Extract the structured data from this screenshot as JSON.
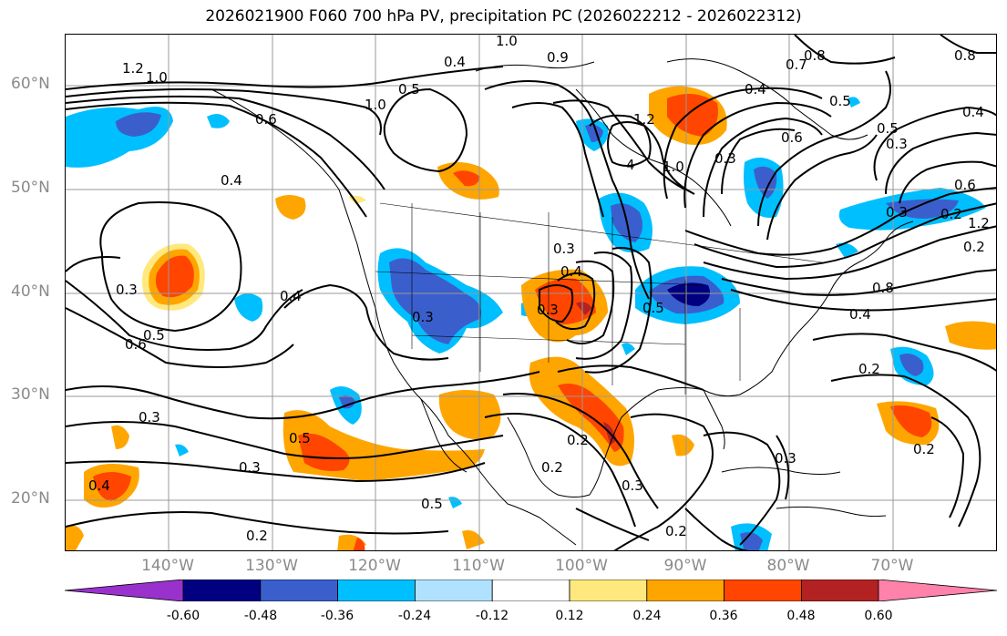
{
  "title": "2026021900 F060 700 hPa PV, precipitation PC (2026022212 - 2026022312)",
  "lat_labels": [
    "60°N",
    "50°N",
    "40°N",
    "30°N",
    "20°N"
  ],
  "lon_labels": [
    "140°W",
    "130°W",
    "120°W",
    "110°W",
    "100°W",
    "90°W",
    "80°W",
    "70°W"
  ],
  "colorbar": {
    "ticks": [
      "-0.60",
      "-0.48",
      "-0.36",
      "-0.24",
      "-0.12",
      "0.12",
      "0.24",
      "0.36",
      "0.48",
      "0.60"
    ],
    "colors": [
      "#9932cc",
      "#000080",
      "#3a5fcd",
      "#00bfff",
      "#b0e2ff",
      "#ffffff",
      "#ffe97f",
      "#ffa500",
      "#ff4500",
      "#b22222",
      "#ff82ab"
    ]
  },
  "contour_labels": [
    "1.0",
    "1.2",
    "1.0",
    "0.9",
    "0.8",
    "0.7",
    "0.8",
    "0.6",
    "0.5",
    "0.4",
    "0.4",
    "0.3",
    "0.5",
    "0.6",
    "1.0",
    "0.6",
    "0.4",
    "0.4",
    "0.3",
    "0.3",
    "0.5",
    "0.6",
    "0.4",
    "0.3",
    "0.5",
    "0.3",
    "0.2",
    "0.5",
    "0.3",
    "0.2",
    "0.4",
    "0.8",
    "0.4",
    "0.2",
    "0.2",
    "0.2",
    "0.3",
    "0.3",
    "0.2",
    "1.2",
    "4",
    "1.0",
    "0.3",
    "0.5",
    "0.3",
    "0.2",
    "0.2",
    "0.3",
    "0.4",
    "0.5",
    "1.2"
  ]
}
